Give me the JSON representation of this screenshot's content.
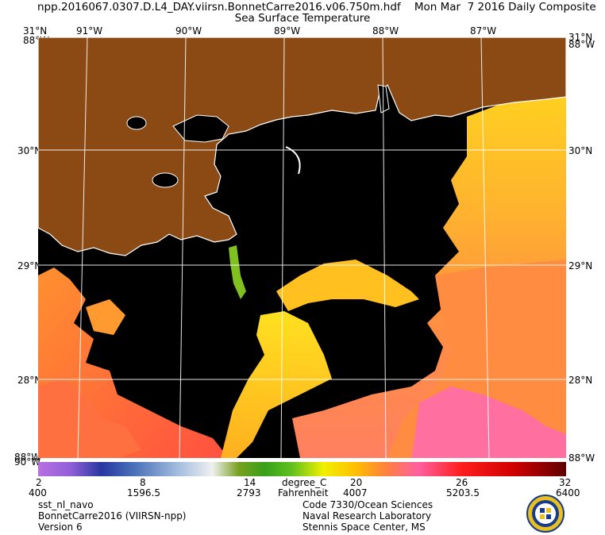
{
  "header": {
    "title_line1": "npp.2016067.0307.D.L4_DAY.viirsn.BonnetCarre2016.v06.750m.hdf    Mon Mar  7 2016 Daily Composite",
    "title_line2": "Sea Surface Temperature"
  },
  "map": {
    "lon_labels": [
      "91°W",
      "90°W",
      "89°W",
      "88°W",
      "87°W"
    ],
    "lat_labels": [
      "31°N",
      "30°N",
      "29°N",
      "28°N"
    ],
    "corner_top_left": "31°N",
    "corner_top_left_lon": "88°W",
    "corner_top_right": "31°N",
    "corner_top_right_lon": "88°W",
    "corner_bottom_left": "88°W",
    "corner_bottom_left2": "90°W",
    "corner_bottom_right": "88°W",
    "colors": {
      "land": "#8b4a14",
      "no_data": "#000000",
      "coastline": "#ffffff",
      "grid": "#ffffff"
    }
  },
  "colorbar": {
    "celsius_ticks": [
      "2",
      "8",
      "14",
      "20",
      "26",
      "32"
    ],
    "unit_c": "degree_C",
    "fahrenheit_ticks": [
      "400",
      "1596.5",
      "2793",
      "4007",
      "5203.5",
      "6400"
    ],
    "unit_f": "Fahrenheit"
  },
  "footer": {
    "left": [
      "sst_nl_navo",
      "BonnetCarre2016 (VIIRSN-npp)",
      "Version 6"
    ],
    "right": [
      "Code 7330/Ocean Sciences",
      "Naval Research Laboratory",
      "Stennis Space Center, MS"
    ]
  },
  "logo": "navy-seal-icon"
}
